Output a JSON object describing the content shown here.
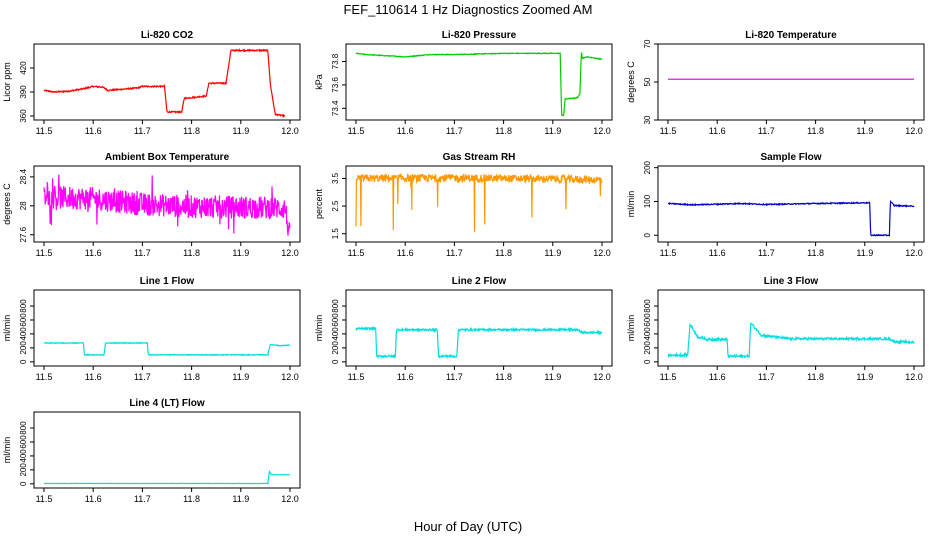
{
  "title": "FEF_110614  1 Hz Diagnostics Zoomed AM",
  "xlabel": "Hour of Day (UTC)",
  "chart_data": [
    {
      "type": "line",
      "title": "Li-820 CO2",
      "ylabel": "Licor ppm",
      "color": "#ff0000",
      "xlim": [
        11.5,
        12.0
      ],
      "ylim": [
        355,
        450
      ],
      "yticks": [
        360,
        390,
        420
      ],
      "xticks": [
        11.5,
        11.6,
        11.7,
        11.8,
        11.9,
        12.0
      ],
      "noise": 0.8,
      "series": [
        {
          "x": [
            11.5,
            11.52,
            11.55,
            11.58,
            11.6,
            11.62,
            11.63,
            11.69,
            11.7,
            11.745,
            11.75,
            11.78,
            11.785,
            11.8,
            11.83,
            11.835,
            11.87,
            11.88,
            11.955,
            11.96,
            11.97,
            11.99
          ],
          "y": [
            392,
            390,
            391,
            394,
            397,
            396,
            392,
            395,
            397,
            397,
            365,
            365,
            382,
            383,
            385,
            401,
            401,
            442,
            442,
            400,
            362,
            360
          ]
        }
      ]
    },
    {
      "type": "line",
      "title": "Li-820 Pressure",
      "ylabel": "kPa",
      "color": "#00cc00",
      "xlim": [
        11.5,
        12.0
      ],
      "ylim": [
        73.3,
        73.95
      ],
      "yticks": [
        73.4,
        73.6,
        73.8
      ],
      "xticks": [
        11.5,
        11.6,
        11.7,
        11.8,
        11.9,
        12.0
      ],
      "noise": 0.003,
      "series": [
        {
          "x": [
            11.5,
            11.52,
            11.56,
            11.6,
            11.65,
            11.7,
            11.8,
            11.85,
            11.9,
            11.915,
            11.918,
            11.922,
            11.925,
            11.95,
            11.955,
            11.958,
            11.96,
            11.97,
            12.0
          ],
          "y": [
            73.87,
            73.86,
            73.85,
            73.84,
            73.86,
            73.86,
            73.87,
            73.87,
            73.87,
            73.87,
            73.34,
            73.34,
            73.48,
            73.49,
            73.52,
            73.89,
            73.83,
            73.84,
            73.82
          ]
        }
      ]
    },
    {
      "type": "line",
      "title": "Li-820 Temperature",
      "ylabel": "degrees C",
      "color": "#cc00cc",
      "xlim": [
        11.5,
        12.0
      ],
      "ylim": [
        30,
        70
      ],
      "yticks": [
        30,
        50,
        70
      ],
      "xticks": [
        11.5,
        11.6,
        11.7,
        11.8,
        11.9,
        12.0
      ],
      "noise": 0,
      "series": [
        {
          "x": [
            11.5,
            12.0
          ],
          "y": [
            51.5,
            51.5
          ]
        }
      ]
    },
    {
      "type": "line",
      "title": "Ambient Box Temperature",
      "ylabel": "degrees C",
      "color": "#ff00ff",
      "xlim": [
        11.5,
        12.0
      ],
      "ylim": [
        27.5,
        28.55
      ],
      "yticks": [
        27.6,
        28.0,
        28.4
      ],
      "xticks": [
        11.5,
        11.6,
        11.7,
        11.8,
        11.9,
        12.0
      ],
      "noise": 0.16,
      "series": [
        {
          "x": [
            11.5,
            11.6,
            11.7,
            11.8,
            11.9,
            11.99,
            12.0
          ],
          "y": [
            28.12,
            28.1,
            28.02,
            27.99,
            27.98,
            27.97,
            27.55
          ]
        }
      ]
    },
    {
      "type": "line",
      "title": "Gas Stream RH",
      "ylabel": "percent",
      "color": "#ff9900",
      "xlim": [
        11.5,
        12.0
      ],
      "ylim": [
        1.2,
        3.95
      ],
      "yticks": [
        1.5,
        2.5,
        3.5
      ],
      "xticks": [
        11.5,
        11.6,
        11.7,
        11.8,
        11.9,
        12.0
      ],
      "noise": 0.14,
      "series": [
        {
          "x": [
            11.5,
            11.7,
            11.9,
            12.0
          ],
          "y": [
            3.5,
            3.52,
            3.48,
            3.45
          ]
        }
      ]
    },
    {
      "type": "line",
      "title": "Sample Flow",
      "ylabel": "ml/min",
      "color": "#0000cc",
      "xlim": [
        11.5,
        12.0
      ],
      "ylim": [
        -20,
        205
      ],
      "yticks": [
        0,
        100,
        200
      ],
      "xticks": [
        11.5,
        11.6,
        11.7,
        11.8,
        11.9,
        12.0
      ],
      "noise": 1.5,
      "series": [
        {
          "x": [
            11.5,
            11.55,
            11.6,
            11.65,
            11.7,
            11.8,
            11.9,
            11.91,
            11.912,
            11.95,
            11.952,
            11.96,
            12.0
          ],
          "y": [
            94,
            90,
            92,
            94,
            91,
            94,
            96,
            96,
            0,
            0,
            100,
            88,
            86
          ]
        }
      ]
    },
    {
      "type": "line",
      "title": "Line 1 Flow",
      "ylabel": "ml/min",
      "color": "#00dddd",
      "xlim": [
        11.5,
        12.0
      ],
      "ylim": [
        -60,
        1030
      ],
      "yticks": [
        0,
        200,
        400,
        600,
        800
      ],
      "xticks": [
        11.5,
        11.6,
        11.7,
        11.8,
        11.9,
        12.0
      ],
      "noise": 5,
      "series": [
        {
          "x": [
            11.5,
            11.58,
            11.582,
            11.622,
            11.625,
            11.71,
            11.712,
            11.955,
            11.96,
            11.98,
            12.0
          ],
          "y": [
            270,
            270,
            100,
            100,
            270,
            270,
            100,
            100,
            250,
            230,
            240
          ]
        }
      ]
    },
    {
      "type": "line",
      "title": "Line 2 Flow",
      "ylabel": "ml/min",
      "color": "#00dddd",
      "xlim": [
        11.5,
        12.0
      ],
      "ylim": [
        -60,
        1030
      ],
      "yticks": [
        0,
        200,
        400,
        600,
        800
      ],
      "xticks": [
        11.5,
        11.6,
        11.7,
        11.8,
        11.9,
        12.0
      ],
      "noise": 14,
      "series": [
        {
          "x": [
            11.5,
            11.54,
            11.542,
            11.58,
            11.582,
            11.665,
            11.668,
            11.705,
            11.708,
            11.95,
            11.96,
            11.98,
            12.0
          ],
          "y": [
            475,
            475,
            80,
            80,
            460,
            460,
            80,
            80,
            460,
            460,
            420,
            420,
            420
          ]
        }
      ]
    },
    {
      "type": "line",
      "title": "Line 3 Flow",
      "ylabel": "ml/min",
      "color": "#00dddd",
      "xlim": [
        11.5,
        12.0
      ],
      "ylim": [
        -60,
        1030
      ],
      "yticks": [
        0,
        200,
        400,
        600,
        800
      ],
      "xticks": [
        11.5,
        11.6,
        11.7,
        11.8,
        11.9,
        12.0
      ],
      "noise": 16,
      "series": [
        {
          "x": [
            11.5,
            11.54,
            11.545,
            11.56,
            11.58,
            11.62,
            11.622,
            11.665,
            11.668,
            11.69,
            11.75,
            11.95,
            11.96,
            12.0
          ],
          "y": [
            90,
            100,
            540,
            360,
            320,
            320,
            80,
            80,
            560,
            380,
            330,
            330,
            290,
            280
          ]
        }
      ]
    },
    {
      "type": "line",
      "title": "Line 4 (LT) Flow",
      "ylabel": "ml/min",
      "color": "#00dddd",
      "xlim": [
        11.5,
        12.0
      ],
      "ylim": [
        -60,
        1030
      ],
      "yticks": [
        0,
        200,
        400,
        600,
        800
      ],
      "xticks": [
        11.5,
        11.6,
        11.7,
        11.8,
        11.9,
        12.0
      ],
      "noise": 2,
      "series": [
        {
          "x": [
            11.5,
            11.955,
            11.958,
            11.962,
            11.97,
            12.0
          ],
          "y": [
            5,
            5,
            180,
            130,
            130,
            130
          ]
        }
      ]
    }
  ]
}
